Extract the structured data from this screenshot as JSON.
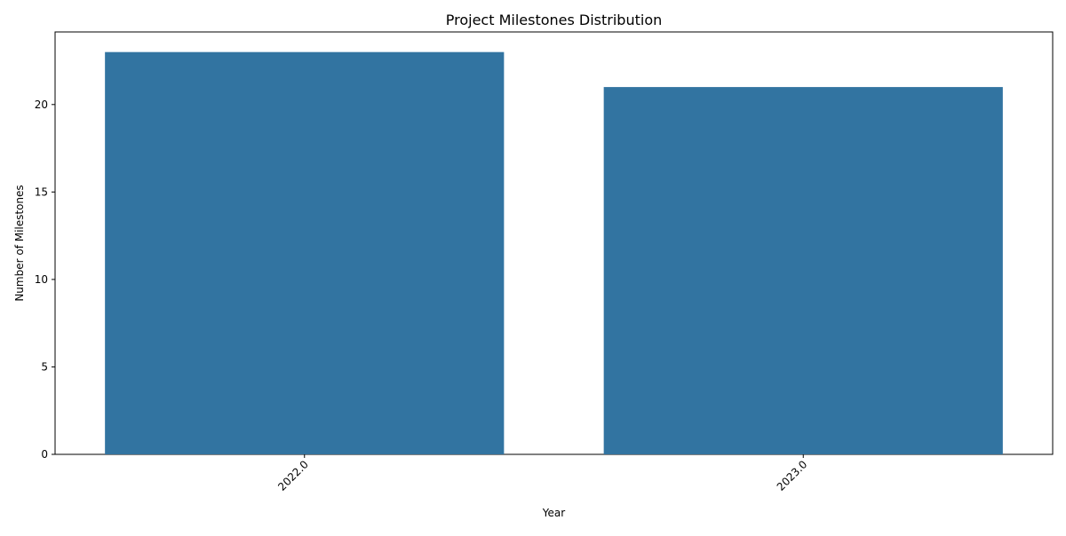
{
  "chart_data": {
    "type": "bar",
    "title": "Project Milestones Distribution",
    "xlabel": "Year",
    "ylabel": "Number of Milestones",
    "categories": [
      "2022.0",
      "2023.0"
    ],
    "values": [
      23,
      21
    ],
    "ylim": [
      0,
      24.15
    ],
    "yticks": [
      0,
      5,
      10,
      15,
      20
    ],
    "xtick_rotation": 45,
    "grid": false,
    "legend": "none",
    "bar_color": "#3274a1"
  }
}
